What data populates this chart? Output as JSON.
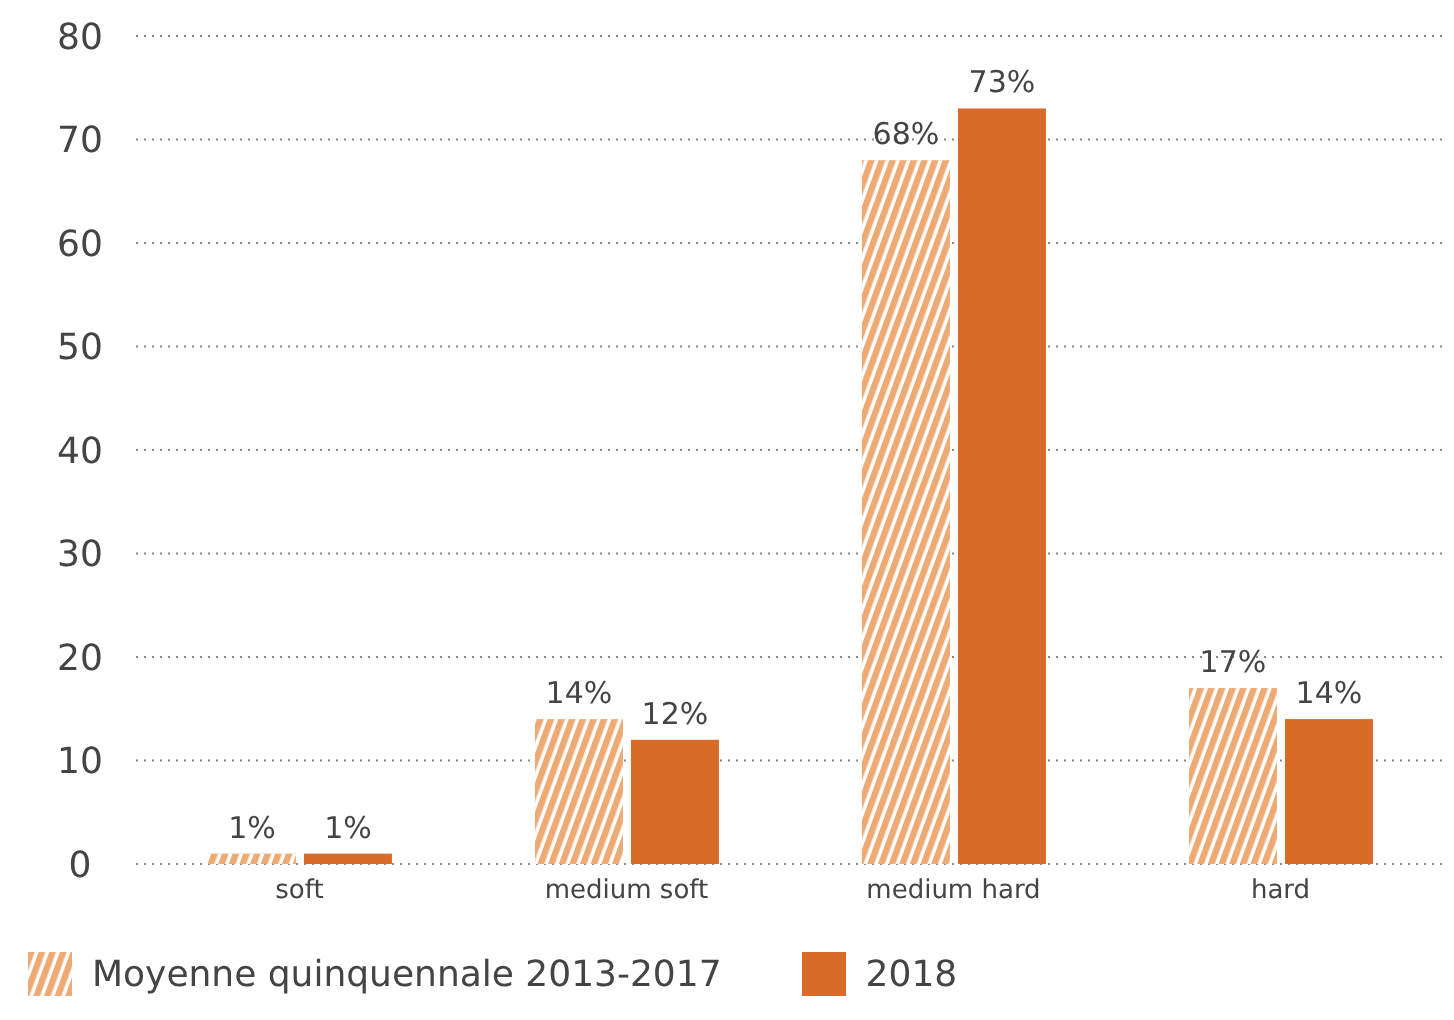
{
  "chart_data": {
    "type": "bar",
    "categories": [
      "soft",
      "medium soft",
      "medium hard",
      "hard"
    ],
    "series": [
      {
        "name": "Moyenne quinquennale 2013-2017",
        "color": "#eeaa74",
        "values": [
          1,
          14,
          68,
          17
        ],
        "value_labels": [
          "1%",
          "14%",
          "68%",
          "17%"
        ]
      },
      {
        "name": "2018",
        "color": "#d96b28",
        "values": [
          1,
          12,
          73,
          14
        ],
        "value_labels": [
          "1%",
          "12%",
          "73%",
          "14%"
        ]
      }
    ],
    "ylim": [
      0,
      80
    ],
    "yticks": [
      0,
      10,
      20,
      30,
      40,
      50,
      60,
      70,
      80
    ],
    "grid": "y",
    "legend": "bottom"
  }
}
